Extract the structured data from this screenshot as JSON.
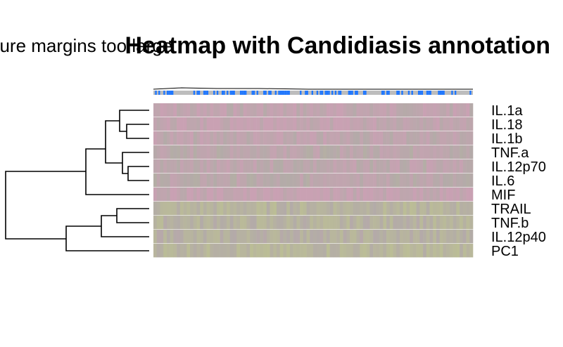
{
  "error_message": "figure margins too large",
  "title": "Heatmap with Candidiasis annotation",
  "chart_data": {
    "type": "heatmap",
    "rows": [
      "IL.1a",
      "IL.18",
      "IL.1b",
      "TNF.a",
      "IL.12p70",
      "IL.6",
      "MIF",
      "TRAIL",
      "TNF.b",
      "IL.12p40",
      "PC1"
    ],
    "n_columns": 96,
    "row_tint": [
      0.2,
      0.15,
      0.25,
      0.35,
      0.3,
      0.35,
      0.1,
      0.75,
      0.7,
      0.65,
      0.8
    ],
    "annotation_track": "Candidiasis",
    "colors": {
      "low": "#c9a1b3",
      "mid": "#b3aba8",
      "high": "#bbbd96",
      "annotation_bg": "#bdbdbd",
      "annotation_mark": "#1f77ff",
      "dendrogram": "#000000"
    },
    "dendrogram_merges": [
      [
        "IL.18",
        "IL.1b"
      ],
      [
        "IL.1a",
        "IL.18+IL.1b"
      ],
      [
        "IL.12p70",
        "IL.6"
      ],
      [
        "TNF.a",
        "IL.12p70+IL.6"
      ],
      [
        "IL.1a+IL.18+IL.1b",
        "TNF.a+IL.12p70+IL.6"
      ],
      [
        "MIF",
        "cluster A"
      ],
      [
        "TRAIL",
        "TNF.b"
      ],
      [
        "TRAIL+TNF.b",
        "IL.12p40"
      ],
      [
        "TRAIL+TNF.b+IL.12p40",
        "PC1"
      ],
      [
        "cluster MIF",
        "cluster PC1"
      ]
    ]
  }
}
